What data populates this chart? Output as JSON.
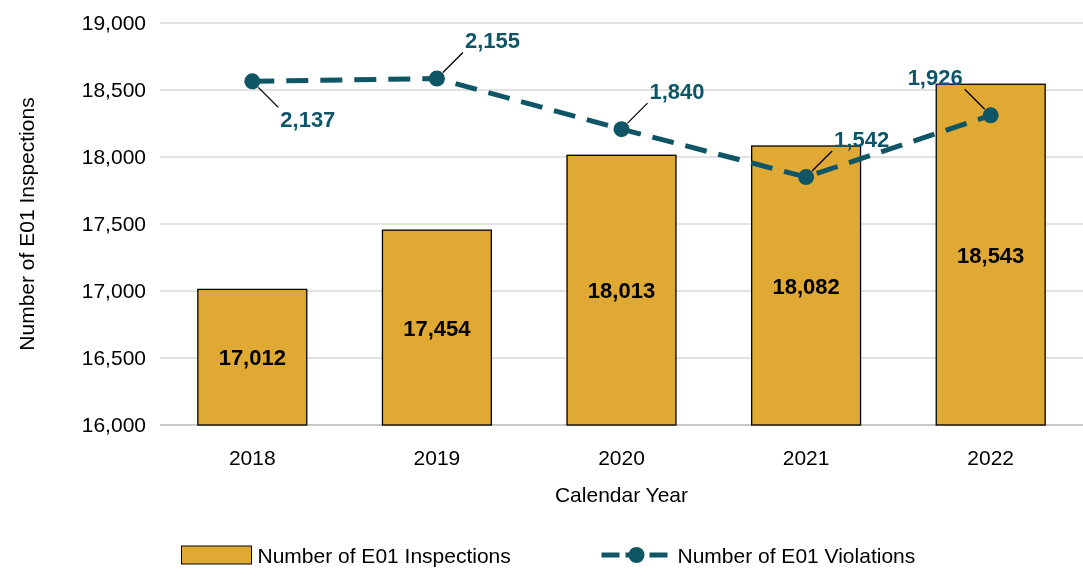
{
  "chart_data": {
    "type": "bar",
    "xlabel": "Calendar Year",
    "ylabel": "Number of E01 Inspections",
    "categories": [
      "2018",
      "2019",
      "2020",
      "2021",
      "2022"
    ],
    "series": [
      {
        "name": "Number of E01 Inspections",
        "color": "#e0a933",
        "values": [
          17012,
          17454,
          18013,
          18082,
          18543
        ],
        "value_labels": [
          "17,012",
          "17,454",
          "18,013",
          "18,082",
          "18,543"
        ]
      },
      {
        "name": "Number of E01 Violations",
        "type": "line",
        "axis": "y2",
        "color": "#0e5566",
        "values": [
          2137,
          2155,
          1840,
          1542,
          1926
        ],
        "value_labels": [
          "2,137",
          "2,155",
          "1,840",
          "1,542",
          "1,926"
        ]
      }
    ],
    "ylim": [
      16000,
      19000
    ],
    "yticks": [
      {
        "value": 16000,
        "label": "16,000"
      },
      {
        "value": 16500,
        "label": "16,500"
      },
      {
        "value": 17000,
        "label": "17,000"
      },
      {
        "value": 17500,
        "label": "17,500"
      },
      {
        "value": 18000,
        "label": "18,000"
      },
      {
        "value": 18500,
        "label": "18,500"
      },
      {
        "value": 19000,
        "label": "19,000"
      }
    ],
    "y2lim": [
      0,
      2500
    ],
    "grid": "y",
    "legend": "bottom",
    "marker": "circle",
    "line_style": "dashed"
  }
}
